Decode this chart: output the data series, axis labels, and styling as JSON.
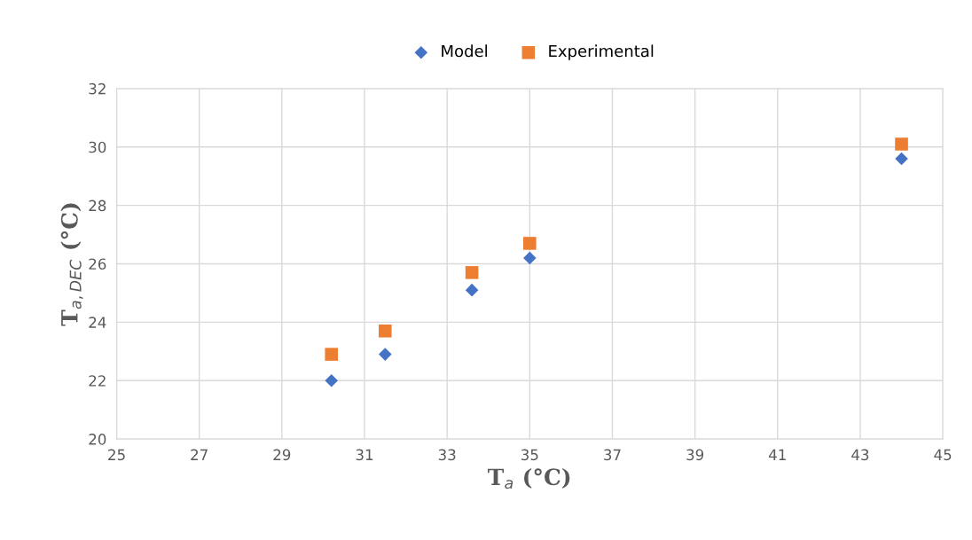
{
  "chart_data": {
    "type": "scatter",
    "xlabel": "T$_{a}$ (°C)",
    "ylabel": "T$_{a,DEC}$ (°C)",
    "xlim": [
      25,
      45
    ],
    "xticks": [
      25,
      27,
      29,
      31,
      33,
      35,
      37,
      39,
      41,
      43,
      45
    ],
    "ylim": [
      20,
      32
    ],
    "yticks": [
      20,
      22,
      24,
      26,
      28,
      30,
      32
    ],
    "grid": true,
    "legend": "top",
    "series": [
      {
        "name": "Model",
        "color": "#4472c4",
        "marker": "diamond",
        "x": [
          30.2,
          31.5,
          33.6,
          35,
          44
        ],
        "values": [
          22.0,
          22.9,
          25.1,
          26.2,
          29.6
        ]
      },
      {
        "name": "Experimental",
        "color": "#ed7d31",
        "marker": "square",
        "x": [
          30.2,
          31.5,
          33.6,
          35,
          44
        ],
        "values": [
          22.9,
          23.7,
          25.7,
          26.7,
          30.1
        ]
      }
    ]
  }
}
